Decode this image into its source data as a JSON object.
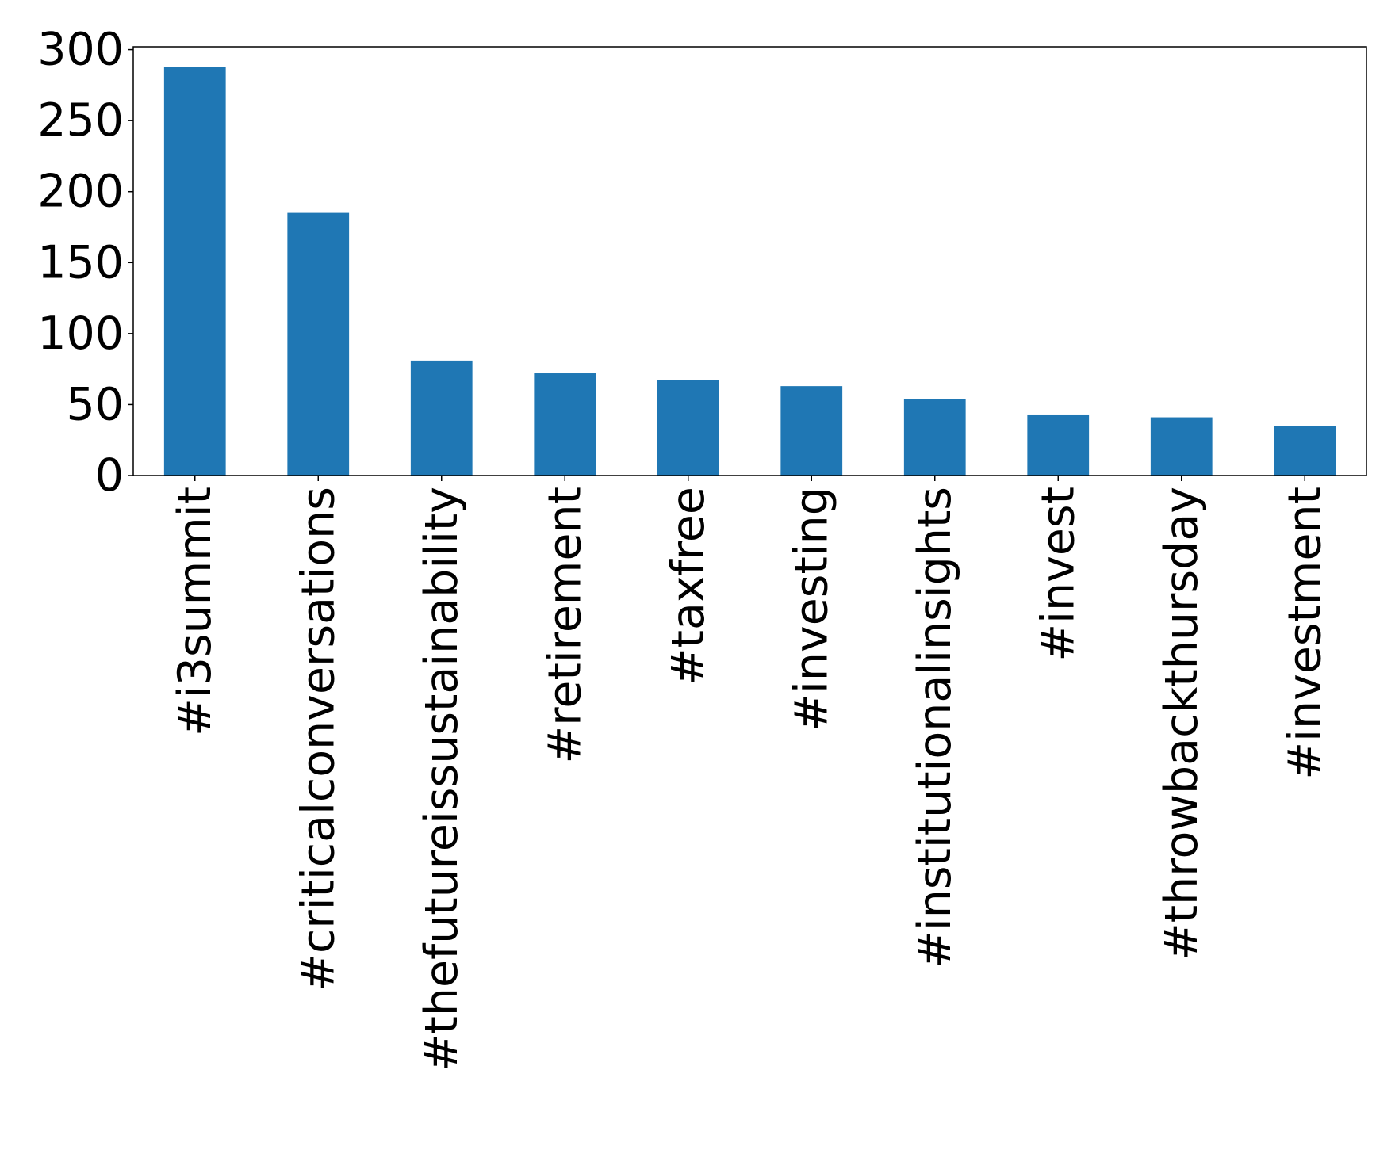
{
  "chart_data": {
    "type": "bar",
    "categories": [
      "#i3summit",
      "#criticalconversations",
      "#thefutureissustainability",
      "#retirement",
      "#taxfree",
      "#investing",
      "#institutionalinsights",
      "#invest",
      "#throwbackthursday",
      "#investment"
    ],
    "values": [
      288,
      185,
      81,
      72,
      67,
      63,
      54,
      43,
      41,
      35
    ],
    "title": "",
    "xlabel": "",
    "ylabel": "",
    "ylim": [
      0,
      302
    ],
    "yticks": [
      0,
      50,
      100,
      150,
      200,
      250,
      300
    ],
    "grid": false,
    "bar_color": "#1f77b4",
    "x_tick_rotation": "vertical"
  }
}
